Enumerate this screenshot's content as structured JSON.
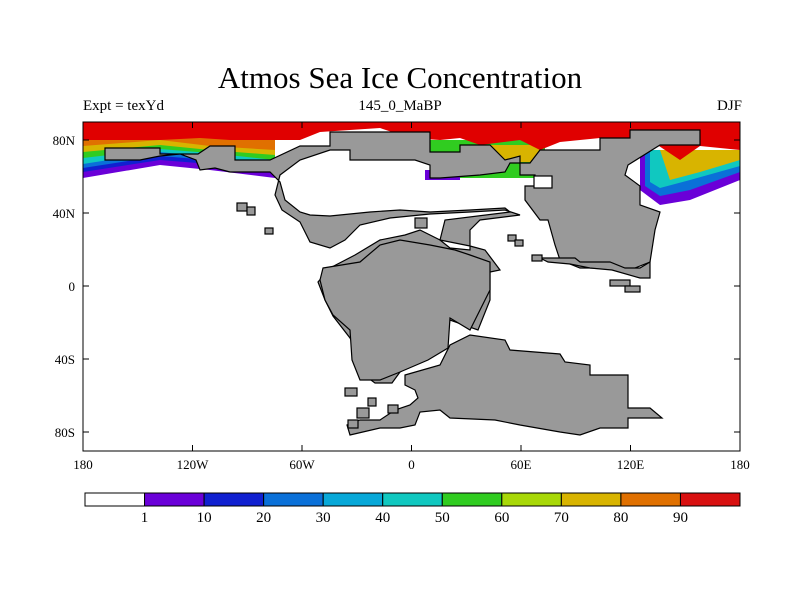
{
  "title": "Atmos Sea Ice Concentration",
  "subtitle_left": "Expt = texYd",
  "subtitle_center": "145_0_MaBP",
  "subtitle_right": "DJF",
  "x_ticks": [
    "180",
    "120W",
    "60W",
    "0",
    "60E",
    "120E",
    "180"
  ],
  "y_ticks": [
    "80N",
    "40N",
    "0",
    "40S",
    "80S"
  ],
  "colorbar": {
    "colors": [
      "#ffffff",
      "#6a00d8",
      "#1020d0",
      "#0a70d8",
      "#08a8d8",
      "#10c8c0",
      "#30cc20",
      "#a8d808",
      "#d8b400",
      "#e07000",
      "#d81010"
    ],
    "labels": [
      "1",
      "10",
      "20",
      "30",
      "40",
      "50",
      "60",
      "70",
      "80",
      "90"
    ]
  },
  "colors": {
    "land": "#999999",
    "ice_max": "#e00000"
  }
}
